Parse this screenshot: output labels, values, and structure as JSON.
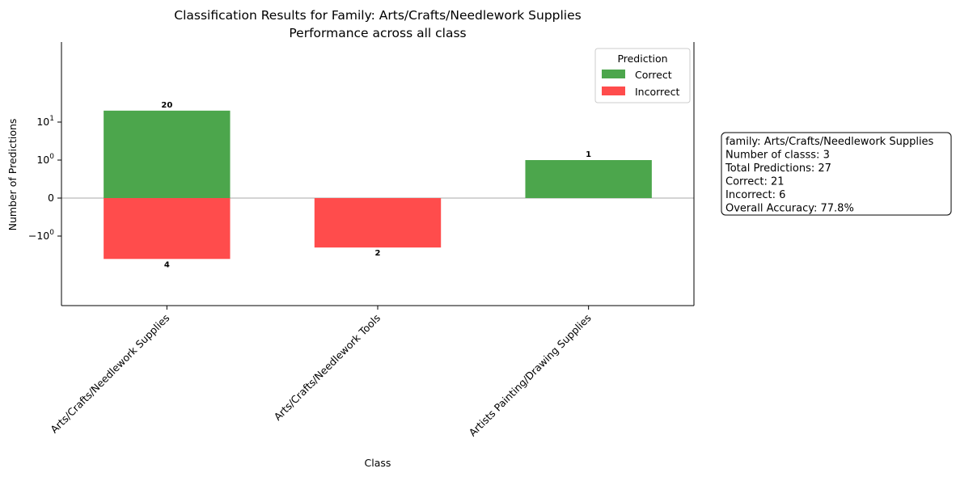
{
  "chart_data": {
    "type": "bar",
    "title": "Classification Results for Family: Arts/Crafts/Needlework Supplies",
    "subtitle": "Performance across all class",
    "xlabel": "Class",
    "ylabel": "Number of Predictions",
    "y_scale": "symlog",
    "categories": [
      "Arts/Crafts/Needlework Supplies",
      "Arts/Crafts/Needlework Tools",
      "Artists Painting/Drawing Supplies"
    ],
    "series": [
      {
        "name": "Correct",
        "color": "#4ca64c",
        "values": [
          20,
          0,
          1
        ],
        "direction": "up"
      },
      {
        "name": "Incorrect",
        "color": "#ff4c4c",
        "values": [
          4,
          2,
          0
        ],
        "direction": "down"
      }
    ],
    "data_labels": {
      "Correct": [
        "20",
        "",
        "1"
      ],
      "Incorrect": [
        "4",
        "2",
        ""
      ]
    },
    "y_ticks": [
      {
        "value": 10,
        "base": "10",
        "exp": "1"
      },
      {
        "value": 1,
        "base": "10",
        "exp": "0"
      },
      {
        "value": 0,
        "base": "0",
        "exp": ""
      },
      {
        "value": -1,
        "base": "−10",
        "exp": "0"
      }
    ],
    "legend": {
      "title": "Prediction",
      "position": "upper right"
    },
    "grid": false,
    "zero_line": true
  },
  "info_box": {
    "lines": [
      "family: Arts/Crafts/Needlework Supplies",
      "Number of classs: 3",
      "Total Predictions: 27",
      "Correct: 21",
      "Incorrect: 6",
      "Overall Accuracy: 77.8%"
    ]
  }
}
